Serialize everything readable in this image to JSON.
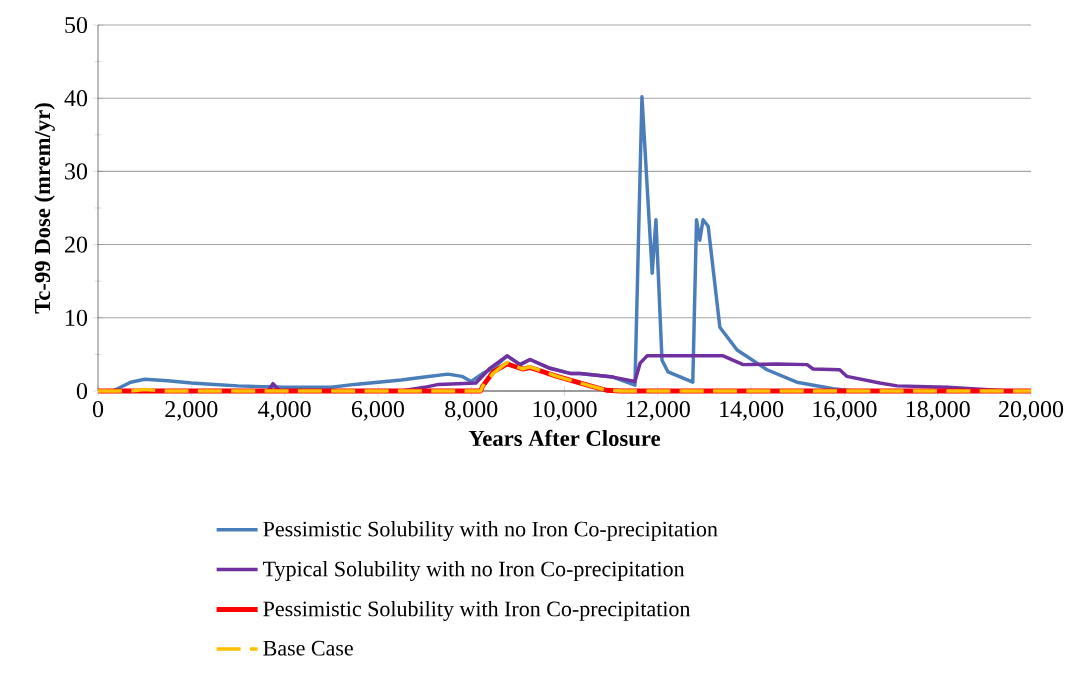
{
  "chart_data": {
    "type": "line",
    "xlabel": "Years After Closure",
    "ylabel": "Tc-99 Dose (mrem/yr)",
    "xlim": [
      0,
      20000
    ],
    "ylim": [
      0,
      50
    ],
    "xticks": [
      {
        "value": 0,
        "label": "0"
      },
      {
        "value": 2000,
        "label": "2,000"
      },
      {
        "value": 4000,
        "label": "4,000"
      },
      {
        "value": 6000,
        "label": "6,000"
      },
      {
        "value": 8000,
        "label": "8,000"
      },
      {
        "value": 10000,
        "label": "10,000"
      },
      {
        "value": 12000,
        "label": "12,000"
      },
      {
        "value": 14000,
        "label": "14,000"
      },
      {
        "value": 16000,
        "label": "16,000"
      },
      {
        "value": 18000,
        "label": "18,000"
      },
      {
        "value": 20000,
        "label": "20,000"
      }
    ],
    "yticks": [
      0,
      10,
      20,
      30,
      40,
      50
    ],
    "grid": "y",
    "legend": "bottom",
    "marker": "none",
    "series": [
      {
        "name": "Pessimistic Solubility with no Iron Co-precipitation",
        "color": "#4a7ebb",
        "line_style": "solid",
        "x": [
          0,
          320,
          700,
          1000,
          1500,
          2000,
          2500,
          3000,
          3500,
          4000,
          4500,
          5000,
          5500,
          6000,
          6500,
          7000,
          7500,
          7800,
          8000,
          8250,
          8470,
          8770,
          9050,
          9260,
          9690,
          10120,
          10330,
          11040,
          11510,
          11660,
          11880,
          11960,
          12090,
          12220,
          12750,
          12830,
          12900,
          12970,
          13080,
          13330,
          13700,
          14340,
          14980,
          15760,
          16200,
          20000
        ],
        "values": [
          0,
          0,
          1.2,
          1.6,
          1.4,
          1.1,
          0.9,
          0.7,
          0.6,
          0.5,
          0.5,
          0.5,
          0.9,
          1.2,
          1.5,
          1.9,
          2.3,
          2.0,
          1.3,
          2.4,
          3.1,
          4.8,
          3.6,
          4.3,
          3.1,
          2.4,
          2.4,
          1.9,
          0.8,
          40.2,
          16.1,
          23.4,
          4.2,
          2.6,
          1.2,
          23.4,
          20.6,
          23.4,
          22.5,
          8.7,
          5.6,
          2.9,
          1.2,
          0.3,
          0,
          0
        ]
      },
      {
        "name": "Typical Solubility with no Iron Co-precipitation",
        "color": "#7030a0",
        "line_style": "solid",
        "x": [
          0,
          3650,
          3750,
          3900,
          6500,
          7000,
          7300,
          8100,
          8400,
          8770,
          9050,
          9260,
          9690,
          10120,
          10330,
          11040,
          11510,
          11620,
          11770,
          13400,
          13830,
          14560,
          15200,
          15330,
          15900,
          16050,
          16760,
          17130,
          18200,
          19270,
          19600,
          20000
        ],
        "values": [
          0,
          0,
          1.0,
          0,
          0,
          0.5,
          0.9,
          1.1,
          3.1,
          4.8,
          3.6,
          4.3,
          3.1,
          2.4,
          2.4,
          1.9,
          1.3,
          3.8,
          4.8,
          4.8,
          3.6,
          3.7,
          3.6,
          3.0,
          2.9,
          2.0,
          1.1,
          0.7,
          0.5,
          0.1,
          0,
          0
        ]
      },
      {
        "name": "Pessimistic Solubility with Iron Co-precipitation",
        "color": "#ff0000",
        "line_style": "solid",
        "x": [
          0,
          8200,
          8250,
          8470,
          8770,
          9100,
          9260,
          9840,
          10550,
          10900,
          11200,
          20000
        ],
        "values": [
          0,
          0,
          0.7,
          2.6,
          3.7,
          3.0,
          3.2,
          2.0,
          0.7,
          0.1,
          0,
          0
        ]
      },
      {
        "name": "Base Case",
        "color": "#ffc000",
        "line_style": "dashed",
        "x": [
          0,
          700,
          1000,
          1400,
          8200,
          8250,
          8470,
          8770,
          9100,
          9260,
          9840,
          10550,
          10900,
          11200,
          20000
        ],
        "values": [
          0,
          0,
          0.2,
          0,
          0,
          0.7,
          2.4,
          3.9,
          3.0,
          3.3,
          2.0,
          0.7,
          0.1,
          0,
          0
        ]
      }
    ]
  }
}
